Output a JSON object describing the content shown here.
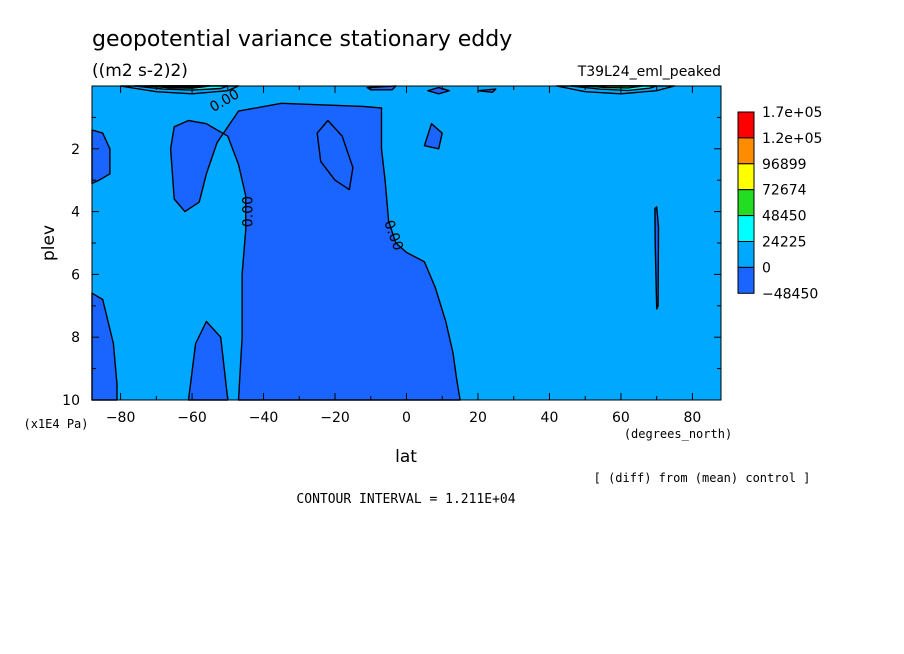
{
  "chart_data": {
    "type": "heatmap",
    "title": "geopotential variance stationary eddy",
    "units": "((m2 s-2)2)",
    "run_label": "T39L24_eml_peaked",
    "xlabel": "lat",
    "x_units": "(degrees_north)",
    "ylabel": "plev",
    "y_units": "(x1E4 Pa)",
    "xlim": [
      -88,
      88
    ],
    "ylim": [
      0,
      10
    ],
    "y_inverted": true,
    "x_ticks": [
      -80,
      -60,
      -40,
      -20,
      0,
      20,
      40,
      60,
      80
    ],
    "y_ticks": [
      2,
      4,
      6,
      8,
      10
    ],
    "x_tick_labels": [
      "-80",
      "-60",
      "-40",
      "-20",
      "0",
      "20",
      "40",
      "60",
      "80"
    ],
    "y_tick_labels": [
      "2",
      "4",
      "6",
      "8",
      "10"
    ],
    "colorbar": {
      "labels": [
        "1.7e+05",
        "1.2e+05",
        "96899",
        "72674",
        "48450",
        "24225",
        "0",
        "-48450"
      ],
      "colors": [
        "#ff0000",
        "#ff8c00",
        "#ffff00",
        "#22dd22",
        "#00ffff",
        "#00a8ff",
        "#1a64ff"
      ]
    },
    "contour_labels": [
      "0.00",
      "0.00",
      "0.00"
    ],
    "footer_note": "[ (diff) from (mean) control ]",
    "contour_interval": "CONTOUR INTERVAL = 1.211E+04",
    "regions": [
      {
        "level": "below_zero",
        "color": "#1a64ff",
        "pts": [
          [
            -47,
            10
          ],
          [
            -46,
            8
          ],
          [
            -46,
            6
          ],
          [
            -45,
            4.6
          ],
          [
            -45,
            3.5
          ],
          [
            -47,
            2.5
          ],
          [
            -50,
            1.6
          ],
          [
            -56,
            1.2
          ],
          [
            -61,
            1.1
          ],
          [
            -65,
            1.3
          ],
          [
            -66,
            2
          ],
          [
            -65,
            3.6
          ],
          [
            -62,
            4
          ],
          [
            -58,
            3.7
          ],
          [
            -56,
            2.8
          ],
          [
            -53,
            1.8
          ],
          [
            -47,
            0.8
          ],
          [
            -35,
            0.55
          ],
          [
            -12,
            0.65
          ],
          [
            -7,
            0.7
          ],
          [
            -7,
            2
          ],
          [
            -6,
            3
          ],
          [
            -5,
            4.3
          ],
          [
            -3,
            5
          ],
          [
            0,
            5.3
          ],
          [
            5,
            5.6
          ],
          [
            8,
            6.4
          ],
          [
            11,
            7.5
          ],
          [
            13,
            8.5
          ],
          [
            14,
            9.3
          ],
          [
            15,
            10
          ]
        ]
      },
      {
        "level": "below_zero",
        "color": "#1a64ff",
        "pts": [
          [
            -88,
            1.4
          ],
          [
            -85,
            1.5
          ],
          [
            -83,
            2
          ],
          [
            -83,
            2.8
          ],
          [
            -86,
            3.0
          ],
          [
            -88,
            3.1
          ]
        ]
      },
      {
        "level": "below_zero",
        "color": "#1a64ff",
        "pts": [
          [
            -88,
            6.6
          ],
          [
            -85,
            6.8
          ],
          [
            -82,
            8.2
          ],
          [
            -81,
            9.5
          ],
          [
            -81,
            10
          ],
          [
            -88,
            10
          ]
        ]
      },
      {
        "level": "below_zero",
        "color": "#1a64ff",
        "pts": [
          [
            -61,
            10
          ],
          [
            -59,
            8.2
          ],
          [
            -56,
            7.5
          ],
          [
            -52,
            8
          ],
          [
            -50,
            10
          ]
        ]
      },
      {
        "level": "below_zero",
        "color": "#1a64ff",
        "pts": [
          [
            -25,
            1.5
          ],
          [
            -22,
            1.1
          ],
          [
            -18,
            1.6
          ],
          [
            -15,
            2.6
          ],
          [
            -16,
            3.3
          ],
          [
            -20,
            3.0
          ],
          [
            -24,
            2.4
          ]
        ]
      },
      {
        "level": "below_zero",
        "color": "#1a64ff",
        "pts": [
          [
            5,
            1.9
          ],
          [
            7,
            1.2
          ],
          [
            10,
            1.5
          ],
          [
            9,
            2.0
          ]
        ]
      },
      {
        "level": "below_zero",
        "color": "#1a64ff",
        "pts": [
          [
            6,
            0.15
          ],
          [
            9,
            0.05
          ],
          [
            12,
            0.15
          ],
          [
            9,
            0.25
          ]
        ]
      },
      {
        "level": "below_zero",
        "color": "#1a64ff",
        "pts": [
          [
            20,
            0.15
          ],
          [
            25,
            0.1
          ],
          [
            24,
            0.2
          ]
        ]
      },
      {
        "level": "below_zero",
        "color": "#1a64ff",
        "pts": [
          [
            -11,
            0.05
          ],
          [
            -3,
            0.0
          ],
          [
            -4,
            0.12
          ],
          [
            -10,
            0.12
          ]
        ]
      },
      {
        "level": "below_zero",
        "color": "#1a64ff",
        "pts": [
          [
            69.5,
            3.9
          ],
          [
            70,
            3.85
          ],
          [
            70.5,
            4.5
          ],
          [
            70.4,
            7
          ],
          [
            70,
            7.1
          ],
          [
            69.6,
            5
          ]
        ]
      },
      {
        "level": "zero_to_24225",
        "color": "#00a8ff",
        "pts": [
          [
            -80,
            0
          ],
          [
            -70,
            0.18
          ],
          [
            -60,
            0.25
          ],
          [
            -50,
            0.15
          ],
          [
            -47,
            0
          ]
        ]
      },
      {
        "level": "zero_to_24225",
        "color": "#00a8ff",
        "pts": [
          [
            42,
            0
          ],
          [
            50,
            0.18
          ],
          [
            60,
            0.25
          ],
          [
            70,
            0.15
          ],
          [
            75,
            0
          ]
        ]
      },
      {
        "level": "24225_to_48450",
        "color": "#00ffff",
        "pts": [
          [
            -76,
            0
          ],
          [
            -68,
            0.1
          ],
          [
            -60,
            0.13
          ],
          [
            -52,
            0.08
          ],
          [
            -50,
            0
          ]
        ]
      },
      {
        "level": "24225_to_48450",
        "color": "#00ffff",
        "pts": [
          [
            46,
            0
          ],
          [
            54,
            0.1
          ],
          [
            62,
            0.14
          ],
          [
            68,
            0.07
          ],
          [
            70,
            0
          ]
        ]
      },
      {
        "level": "48450_to_72674",
        "color": "#22dd22",
        "pts": [
          [
            -72,
            0
          ],
          [
            -66,
            0.06
          ],
          [
            -60,
            0.07
          ],
          [
            -55,
            0
          ]
        ]
      },
      {
        "level": "48450_to_72674",
        "color": "#22dd22",
        "pts": [
          [
            50,
            0
          ],
          [
            56,
            0.05
          ],
          [
            62,
            0.06
          ],
          [
            66,
            0
          ]
        ]
      },
      {
        "level": "above_72674",
        "color": "#000000",
        "pts": [
          [
            -68,
            0
          ],
          [
            -66,
            0.04
          ],
          [
            -58,
            0.04
          ],
          [
            -57,
            0
          ]
        ]
      }
    ]
  }
}
